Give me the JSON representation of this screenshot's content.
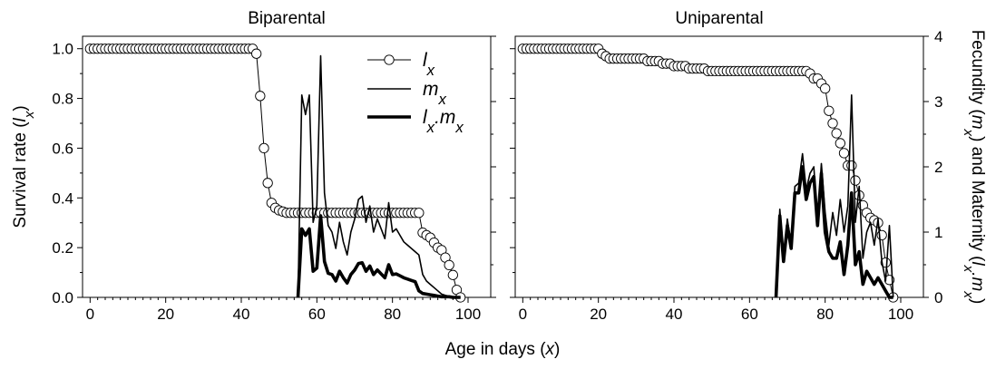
{
  "chart_data": [
    {
      "type": "line",
      "title": "Biparental",
      "xlabel": "Age in days (x)",
      "ylabel": "Survival rate (lx)",
      "y2label": "Fecundity (mx) and Maternity (lx.mx)",
      "xlim": [
        -2,
        106
      ],
      "ylim": [
        0,
        1.05
      ],
      "y2lim": [
        0,
        4
      ],
      "xticks": [
        "0",
        "20",
        "40",
        "60",
        "80",
        "100"
      ],
      "yticks": [
        "0.0",
        "0.2",
        "0.4",
        "0.6",
        "0.8",
        "1.0"
      ],
      "y2ticks": [
        "0",
        "1",
        "2",
        "3",
        "4"
      ],
      "grid": false,
      "legend": {
        "position": "top-center",
        "entries": [
          {
            "base": "l",
            "sub": "x",
            "style": "circles"
          },
          {
            "base": "m",
            "sub": "x",
            "style": "thin"
          },
          {
            "base": "l",
            "sub": "x",
            "base2": ".m",
            "sub2": "x",
            "style": "thick"
          }
        ]
      },
      "series": [
        {
          "name": "lx",
          "axis": "left",
          "x": [
            0,
            1,
            2,
            3,
            4,
            5,
            6,
            7,
            8,
            9,
            10,
            11,
            12,
            13,
            14,
            15,
            16,
            17,
            18,
            19,
            20,
            21,
            22,
            23,
            24,
            25,
            26,
            27,
            28,
            29,
            30,
            31,
            32,
            33,
            34,
            35,
            36,
            37,
            38,
            39,
            40,
            41,
            42,
            43,
            44,
            45,
            46,
            47,
            48,
            49,
            50,
            51,
            52,
            53,
            54,
            55,
            56,
            57,
            58,
            59,
            60,
            61,
            62,
            63,
            64,
            65,
            66,
            67,
            68,
            69,
            70,
            71,
            72,
            73,
            74,
            75,
            76,
            77,
            78,
            79,
            80,
            81,
            82,
            83,
            84,
            85,
            86,
            87,
            88,
            89,
            90,
            91,
            92,
            93,
            94,
            95,
            96,
            97,
            98
          ],
          "y": [
            1,
            1,
            1,
            1,
            1,
            1,
            1,
            1,
            1,
            1,
            1,
            1,
            1,
            1,
            1,
            1,
            1,
            1,
            1,
            1,
            1,
            1,
            1,
            1,
            1,
            1,
            1,
            1,
            1,
            1,
            1,
            1,
            1,
            1,
            1,
            1,
            1,
            1,
            1,
            1,
            1,
            1,
            1,
            1,
            0.98,
            0.81,
            0.6,
            0.46,
            0.38,
            0.36,
            0.35,
            0.345,
            0.34,
            0.34,
            0.34,
            0.34,
            0.34,
            0.34,
            0.34,
            0.34,
            0.34,
            0.34,
            0.34,
            0.34,
            0.34,
            0.34,
            0.34,
            0.34,
            0.34,
            0.34,
            0.34,
            0.34,
            0.34,
            0.34,
            0.34,
            0.34,
            0.34,
            0.34,
            0.34,
            0.34,
            0.34,
            0.34,
            0.34,
            0.34,
            0.34,
            0.34,
            0.34,
            0.34,
            0.26,
            0.25,
            0.24,
            0.22,
            0.2,
            0.19,
            0.16,
            0.13,
            0.09,
            0.03,
            0.0
          ]
        },
        {
          "name": "mx",
          "axis": "right",
          "x": [
            55,
            56,
            57,
            58,
            59,
            60,
            61,
            62,
            63,
            64,
            65,
            66,
            67,
            68,
            69,
            70,
            71,
            72,
            73,
            74,
            75,
            76,
            77,
            78,
            79,
            80,
            81,
            82,
            83,
            84,
            85,
            86,
            87,
            88,
            89,
            90,
            91,
            92,
            93,
            94,
            95,
            96,
            97,
            98
          ],
          "y": [
            0,
            3.1,
            2.8,
            3.1,
            1.15,
            1.4,
            3.7,
            1.6,
            1.1,
            1.0,
            0.75,
            1.15,
            0.85,
            0.65,
            1.0,
            1.2,
            1.5,
            1.55,
            1.15,
            1.4,
            1.0,
            1.2,
            1.05,
            0.9,
            1.45,
            1.0,
            1.05,
            0.95,
            0.85,
            0.8,
            0.75,
            0.7,
            0.65,
            0.35,
            0.25,
            0.2,
            0.15,
            0.1,
            0.05,
            0.03,
            0.02,
            0.01,
            0.0,
            0.0
          ]
        },
        {
          "name": "lx.mx",
          "axis": "right",
          "x": [
            55,
            56,
            57,
            58,
            59,
            60,
            61,
            62,
            63,
            64,
            65,
            66,
            67,
            68,
            69,
            70,
            71,
            72,
            73,
            74,
            75,
            76,
            77,
            78,
            79,
            80,
            81,
            82,
            83,
            84,
            85,
            86,
            87,
            88,
            89,
            90,
            91,
            92,
            93,
            94,
            95,
            96,
            97,
            98
          ],
          "y": [
            0,
            1.05,
            0.95,
            1.05,
            0.4,
            0.45,
            1.25,
            0.55,
            0.37,
            0.35,
            0.25,
            0.4,
            0.3,
            0.22,
            0.35,
            0.42,
            0.52,
            0.53,
            0.4,
            0.48,
            0.35,
            0.42,
            0.36,
            0.3,
            0.5,
            0.35,
            0.36,
            0.33,
            0.3,
            0.28,
            0.26,
            0.24,
            0.1,
            0.06,
            0.05,
            0.04,
            0.03,
            0.02,
            0.01,
            0.01,
            0.01,
            0.0,
            0.0,
            0.0
          ]
        }
      ]
    },
    {
      "type": "line",
      "title": "Uniparental",
      "xlabel": "Age in days (x)",
      "ylabel": "Survival rate (lx)",
      "y2label": "Fecundity (mx) and Maternity (lx.mx)",
      "xlim": [
        -2,
        106
      ],
      "ylim": [
        0,
        1.05
      ],
      "y2lim": [
        0,
        4
      ],
      "xticks": [
        "0",
        "20",
        "40",
        "60",
        "80",
        "100"
      ],
      "yticks": [
        "0.0",
        "0.2",
        "0.4",
        "0.6",
        "0.8",
        "1.0"
      ],
      "y2ticks": [
        "0",
        "1",
        "2",
        "3",
        "4"
      ],
      "grid": false,
      "series": [
        {
          "name": "lx",
          "axis": "left",
          "x": [
            0,
            1,
            2,
            3,
            4,
            5,
            6,
            7,
            8,
            9,
            10,
            11,
            12,
            13,
            14,
            15,
            16,
            17,
            18,
            19,
            20,
            21,
            22,
            23,
            24,
            25,
            26,
            27,
            28,
            29,
            30,
            31,
            32,
            33,
            34,
            35,
            36,
            37,
            38,
            39,
            40,
            41,
            42,
            43,
            44,
            45,
            46,
            47,
            48,
            49,
            50,
            51,
            52,
            53,
            54,
            55,
            56,
            57,
            58,
            59,
            60,
            61,
            62,
            63,
            64,
            65,
            66,
            67,
            68,
            69,
            70,
            71,
            72,
            73,
            74,
            75,
            76,
            77,
            78,
            79,
            80,
            81,
            82,
            83,
            84,
            85,
            86,
            87,
            88,
            89,
            90,
            91,
            92,
            93,
            94,
            95,
            96,
            97,
            98
          ],
          "y": [
            1,
            1,
            1,
            1,
            1,
            1,
            1,
            1,
            1,
            1,
            1,
            1,
            1,
            1,
            1,
            1,
            1,
            1,
            1,
            1,
            1,
            0.98,
            0.97,
            0.96,
            0.96,
            0.96,
            0.96,
            0.96,
            0.96,
            0.96,
            0.96,
            0.96,
            0.96,
            0.95,
            0.95,
            0.95,
            0.95,
            0.94,
            0.94,
            0.94,
            0.93,
            0.93,
            0.93,
            0.93,
            0.92,
            0.92,
            0.92,
            0.92,
            0.92,
            0.91,
            0.91,
            0.91,
            0.91,
            0.91,
            0.91,
            0.91,
            0.91,
            0.91,
            0.91,
            0.91,
            0.91,
            0.91,
            0.91,
            0.91,
            0.91,
            0.91,
            0.91,
            0.91,
            0.91,
            0.91,
            0.91,
            0.91,
            0.91,
            0.91,
            0.91,
            0.91,
            0.9,
            0.88,
            0.88,
            0.86,
            0.84,
            0.75,
            0.7,
            0.66,
            0.62,
            0.58,
            0.53,
            0.53,
            0.47,
            0.41,
            0.37,
            0.34,
            0.32,
            0.31,
            0.3,
            0.25,
            0.14,
            0.07,
            0.0
          ]
        },
        {
          "name": "mx",
          "axis": "right",
          "x": [
            67,
            68,
            69,
            70,
            71,
            72,
            73,
            74,
            75,
            76,
            77,
            78,
            79,
            80,
            81,
            82,
            83,
            84,
            85,
            86,
            87,
            88,
            89,
            90,
            91,
            92,
            93,
            94,
            95,
            96,
            97,
            98
          ],
          "y": [
            0,
            1.35,
            0.6,
            1.2,
            0.8,
            1.7,
            1.75,
            2.2,
            1.65,
            1.9,
            2.0,
            1.15,
            2.05,
            1.3,
            0.8,
            1.3,
            0.95,
            1.5,
            1.0,
            1.4,
            3.1,
            1.15,
            1.7,
            0.6,
            1.0,
            1.15,
            0.8,
            1.2,
            0.55,
            0.25,
            1.1,
            0.0
          ]
        },
        {
          "name": "lx.mx",
          "axis": "right",
          "x": [
            67,
            68,
            69,
            70,
            71,
            72,
            73,
            74,
            75,
            76,
            77,
            78,
            79,
            80,
            81,
            82,
            83,
            84,
            85,
            86,
            87,
            88,
            89,
            90,
            91,
            92,
            93,
            94,
            95,
            96,
            97,
            98
          ],
          "y": [
            0,
            1.25,
            0.55,
            1.1,
            0.75,
            1.6,
            1.6,
            2.0,
            1.5,
            1.75,
            1.85,
            1.1,
            1.9,
            1.0,
            0.7,
            0.6,
            0.6,
            0.85,
            0.35,
            0.8,
            1.6,
            0.5,
            0.7,
            0.2,
            0.4,
            0.3,
            0.2,
            0.3,
            0.2,
            0.1,
            0.0,
            0.0
          ]
        }
      ]
    }
  ]
}
